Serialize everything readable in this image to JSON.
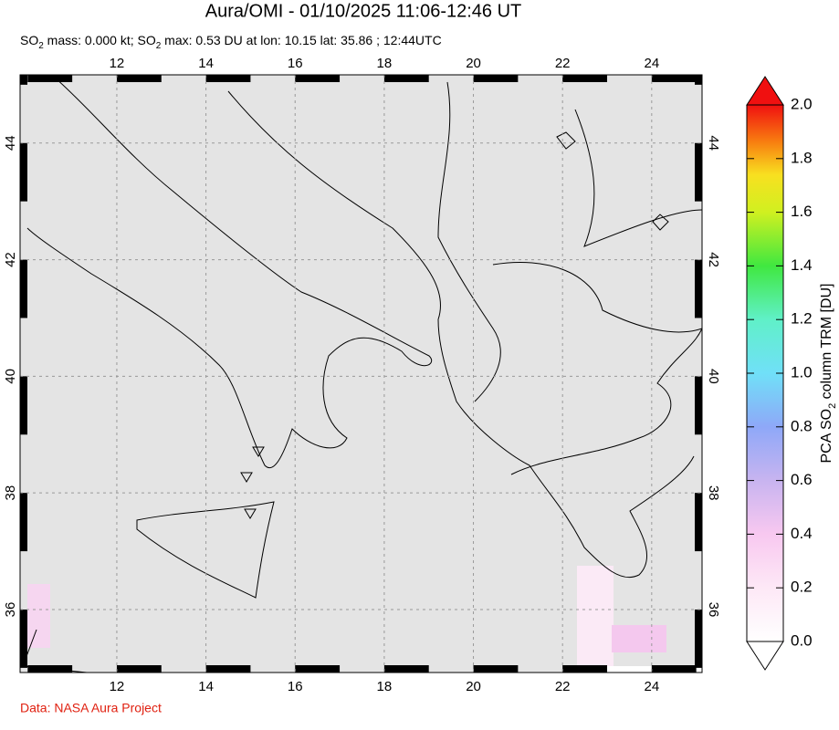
{
  "map": {
    "title": "Aura/OMI - 01/10/2025 11:06-12:46 UT",
    "subtitle": [
      "SO",
      "2",
      " mass: 0.000 kt; SO",
      "2",
      " max: 0.53 DU at lon: 10.15 lat: 35.86 ; 12:44UTC"
    ],
    "xlim": [
      9.83,
      25.13
    ],
    "ylim": [
      34.92,
      45.17
    ],
    "xticks": [
      12,
      14,
      16,
      18,
      20,
      22,
      24
    ],
    "yticks": [
      36,
      38,
      40,
      42,
      44
    ],
    "grid": true,
    "colorbar": {
      "label": [
        "PCA SO",
        "2",
        " column TRM [DU]"
      ],
      "lim": [
        0,
        2
      ],
      "ticks": [
        {
          "value": 0,
          "label": "0.0"
        },
        {
          "value": 0.2,
          "label": "0.2"
        },
        {
          "value": 0.4,
          "label": "0.4"
        },
        {
          "value": 0.6,
          "label": "0.6"
        },
        {
          "value": 0.8,
          "label": "0.8"
        },
        {
          "value": 1,
          "label": "1.0"
        },
        {
          "value": 1.2,
          "label": "1.2"
        },
        {
          "value": 1.4,
          "label": "1.4"
        },
        {
          "value": 1.6,
          "label": "1.6"
        },
        {
          "value": 1.8,
          "label": "1.8"
        },
        {
          "value": 2,
          "label": "2.0"
        }
      ]
    },
    "credit": "Data: NASA Aura Project"
  }
}
